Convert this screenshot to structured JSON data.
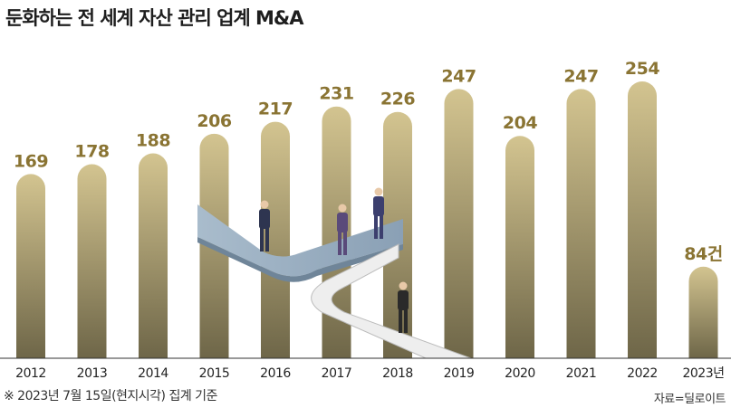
{
  "header": {
    "title": "둔화하는 전 세계 자산 관리 업계 M&A"
  },
  "footer": {
    "note": "※ 2023년 7월 15일(현지시각) 집계 기준",
    "source": "자료=딜로이트"
  },
  "colors": {
    "bar_top": "#d3c490",
    "bar_bottom": "#6e6648",
    "value_label": "#8a7433",
    "baseline": "#333333",
    "bridge": "#93a9bd"
  },
  "chart_data": {
    "type": "bar",
    "title": "둔화하는 전 세계 자산 관리 업계 M&A",
    "xlabel": "",
    "ylabel": "",
    "categories": [
      "2012",
      "2013",
      "2014",
      "2015",
      "2016",
      "2017",
      "2018",
      "2019",
      "2020",
      "2021",
      "2022",
      "2023년"
    ],
    "values": [
      169,
      178,
      188,
      206,
      217,
      231,
      226,
      247,
      204,
      247,
      254,
      84
    ],
    "value_labels": [
      "169",
      "178",
      "188",
      "206",
      "217",
      "231",
      "226",
      "247",
      "204",
      "247",
      "254",
      "84건"
    ],
    "ylim": [
      0,
      254
    ],
    "grid": false,
    "legend": "none"
  }
}
